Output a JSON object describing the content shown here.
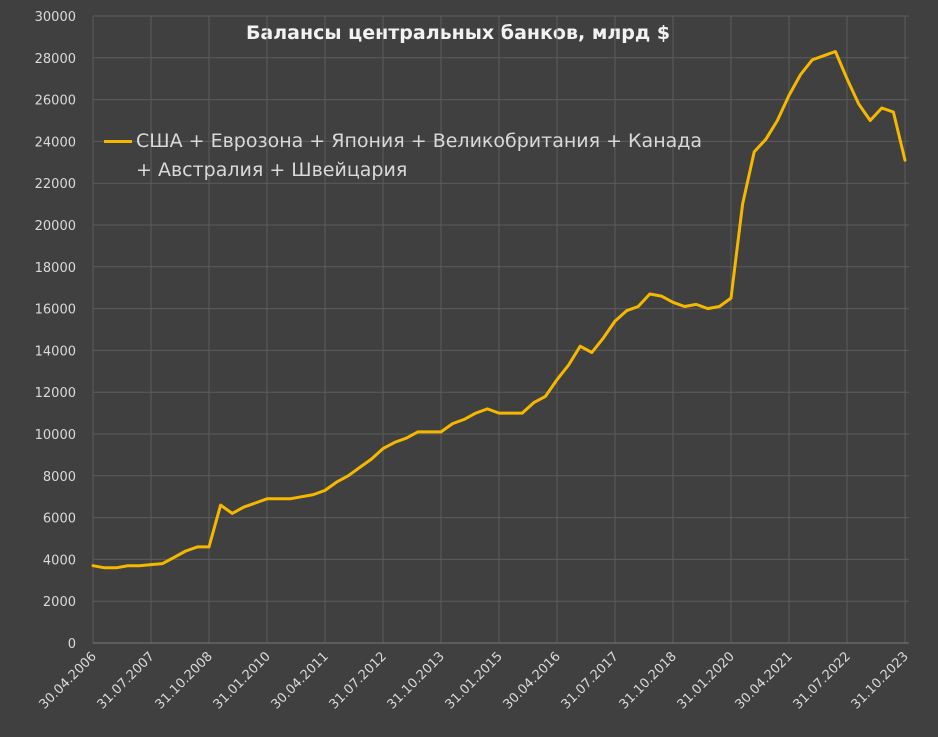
{
  "chart_data": {
    "type": "line",
    "title": "Балансы центральных банков, млрд $",
    "categories": [
      "30.04.2006",
      null,
      null,
      null,
      null,
      "31.07.2007",
      null,
      null,
      null,
      null,
      "31.10.2008",
      null,
      null,
      null,
      null,
      "31.01.2010",
      null,
      null,
      null,
      null,
      "30.04.2011",
      null,
      null,
      null,
      null,
      "31.07.2012",
      null,
      null,
      null,
      null,
      "31.10.2013",
      null,
      null,
      null,
      null,
      "31.01.2015",
      null,
      null,
      null,
      null,
      "30.04.2016",
      null,
      null,
      null,
      null,
      "31.07.2017",
      null,
      null,
      null,
      null,
      "31.10.2018",
      null,
      null,
      null,
      null,
      "31.01.2020",
      null,
      null,
      null,
      null,
      "30.04.2021",
      null,
      null,
      null,
      null,
      "31.07.2022",
      null,
      null,
      null,
      null,
      "31.10.2023"
    ],
    "series": [
      {
        "name": "США + Еврозона + Япония + Великобритания + Канада + Австралия + Швейцария",
        "color": "#f5b800",
        "values": [
          3700,
          3600,
          3600,
          3700,
          3700,
          3750,
          3800,
          4100,
          4400,
          4600,
          4600,
          6600,
          6200,
          6500,
          6700,
          6900,
          6900,
          6900,
          7000,
          7100,
          7300,
          7700,
          8000,
          8400,
          8800,
          9300,
          9600,
          9800,
          10100,
          10100,
          10100,
          10500,
          10700,
          11000,
          11200,
          11000,
          11000,
          11000,
          11500,
          11800,
          12600,
          13300,
          14200,
          13900,
          14600,
          15400,
          15900,
          16100,
          16700,
          16600,
          16300,
          16100,
          16200,
          16000,
          16100,
          16500,
          21000,
          23500,
          24100,
          25000,
          26200,
          27200,
          27900,
          28100,
          28300,
          27000,
          25800,
          25000,
          25600,
          25400,
          23100
        ]
      }
    ],
    "ylim": [
      0,
      30000
    ],
    "yticks": [
      0,
      2000,
      4000,
      6000,
      8000,
      10000,
      12000,
      14000,
      16000,
      18000,
      20000,
      22000,
      24000,
      26000,
      28000,
      30000
    ],
    "grid": true
  }
}
